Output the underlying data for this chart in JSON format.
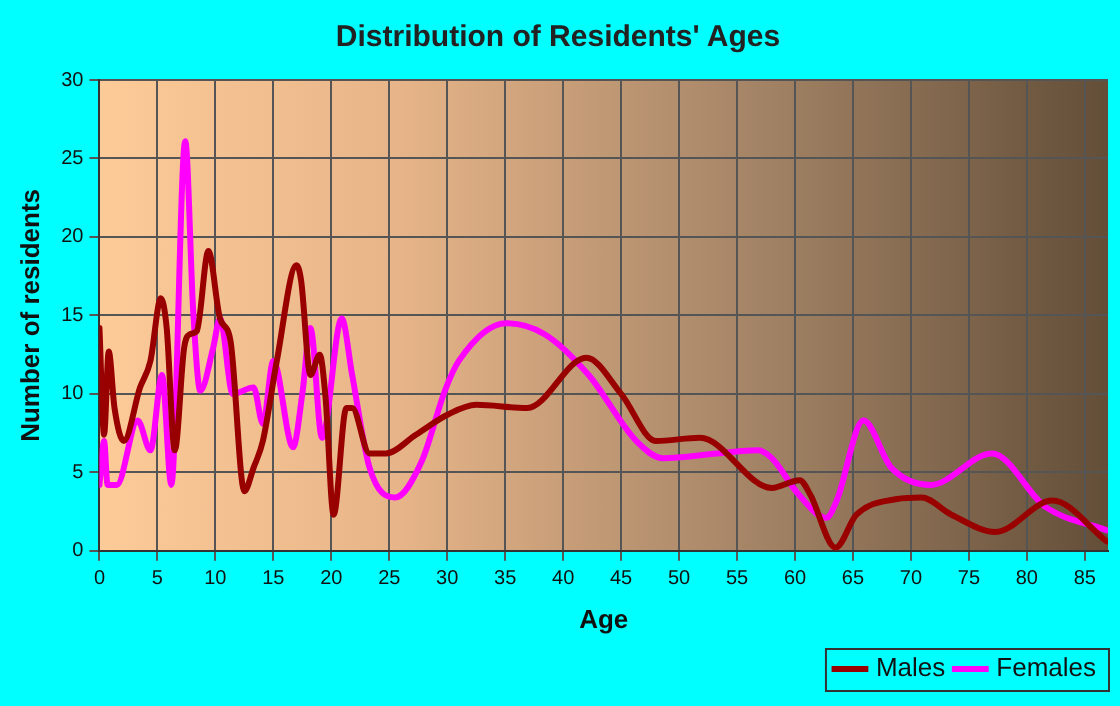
{
  "chart_data": {
    "type": "line",
    "title": "Distribution of Residents' Ages",
    "xlabel": "Age",
    "ylabel": "Number of residents",
    "xlim": [
      0,
      87
    ],
    "xticks": [
      0,
      5,
      10,
      15,
      20,
      25,
      30,
      35,
      40,
      45,
      50,
      55,
      60,
      65,
      70,
      75,
      80,
      85
    ],
    "ylim": [
      0,
      30
    ],
    "yticks": [
      0,
      5,
      10,
      15,
      20,
      25,
      30
    ],
    "grid": true,
    "legend": "bottom right",
    "marker": "none",
    "line_style": "solid",
    "series": [
      {
        "name": "Males",
        "color": "#990000",
        "x": [
          0,
          0.4,
          0.8,
          1.3,
          2.1,
          3.5,
          4.4,
          5.3,
          5.8,
          6.5,
          7.3,
          7.8,
          8.4,
          9.4,
          10.4,
          11.3,
          12.5,
          13.3,
          14.1,
          15.3,
          17,
          17.4,
          18.2,
          19,
          19.5,
          20.2,
          21.3,
          21.8,
          23.3,
          24.7,
          27.3,
          30.1,
          32.5,
          36.9,
          42,
          45,
          48,
          51.8,
          58,
          60.4,
          61.3,
          63.5,
          65.3,
          68.8,
          70.9,
          73.5,
          77.3,
          82.2,
          86.9
        ],
        "values": [
          14.2,
          7.4,
          12.7,
          9.1,
          7,
          10.4,
          12.1,
          16.1,
          14.2,
          6.4,
          12.9,
          13.8,
          14,
          19.1,
          14.8,
          13.4,
          3.8,
          5.3,
          7,
          12.1,
          18.2,
          17.2,
          11.2,
          12.5,
          9.8,
          2.3,
          9.1,
          9.1,
          6.2,
          6.2,
          7.4,
          8.7,
          9.3,
          9.1,
          12.3,
          10,
          7,
          7.2,
          4,
          4.5,
          3.6,
          0.2,
          2.3,
          3.3,
          3.4,
          2.3,
          1.2,
          3.2,
          0.6
        ]
      },
      {
        "name": "Females",
        "color": "#ff00ff",
        "x": [
          0,
          0.4,
          0.7,
          1.5,
          3.3,
          4.4,
          5.4,
          6.2,
          7.4,
          8.1,
          8.7,
          9.8,
          10.4,
          11.5,
          13.3,
          14.1,
          15,
          16.7,
          17.5,
          18.2,
          19.2,
          20.9,
          21.8,
          23.3,
          25.5,
          27.8,
          29.8,
          31,
          35.1,
          38.4,
          42.2,
          46.3,
          48.6,
          53.3,
          56.8,
          58,
          60.3,
          62.7,
          63.6,
          65.9,
          68.3,
          71.7,
          77,
          81.6,
          86.9
        ],
        "values": [
          4.2,
          7,
          4.2,
          4.2,
          8.3,
          6.4,
          11.2,
          4.2,
          26.1,
          15.1,
          10.2,
          12.9,
          14.8,
          10,
          10.4,
          8.1,
          12.1,
          6.6,
          10,
          14.2,
          7.2,
          14.8,
          11.2,
          5.3,
          3.4,
          5.7,
          10.2,
          12.1,
          14.5,
          13.8,
          11.2,
          7,
          5.9,
          6.2,
          6.4,
          5.9,
          3.6,
          2.1,
          3.2,
          8.3,
          5.3,
          4.2,
          6.2,
          2.8,
          1.3
        ]
      }
    ]
  }
}
